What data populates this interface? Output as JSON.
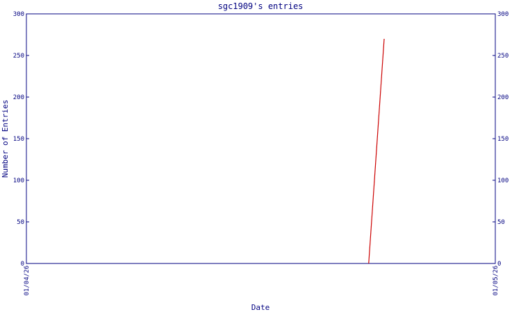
{
  "chart_data": {
    "type": "line",
    "title": "sgc1909's entries",
    "x_label": "Date",
    "y_label": "Number of Entries",
    "x": [
      0.73,
      0.763
    ],
    "xlim": [
      0,
      1
    ],
    "xticks": [
      {
        "value": 0,
        "label": "01/04/26"
      },
      {
        "value": 1,
        "label": "01/05/26"
      }
    ],
    "series": [
      {
        "color": "#cc0000",
        "values": [
          0,
          270
        ]
      }
    ],
    "ylim": [
      0,
      300
    ],
    "yticks": [
      0,
      50,
      100,
      150,
      200,
      250,
      300
    ],
    "axis_color": "#000080"
  }
}
